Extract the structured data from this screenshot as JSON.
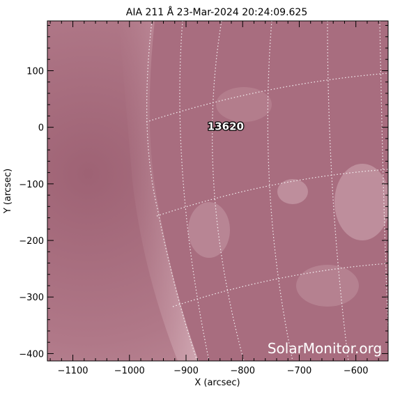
{
  "title": "AIA 211 Å 23-Mar-2024 20:24:09.625",
  "x_axis": {
    "label": "X (arcsec)",
    "range": [
      -1145,
      -543
    ],
    "ticks": [
      -1100,
      -1000,
      -900,
      -800,
      -700,
      -600
    ]
  },
  "y_axis": {
    "label": "Y (arcsec)",
    "range": [
      -413,
      188
    ],
    "ticks": [
      100,
      0,
      -100,
      -200,
      -300,
      -400
    ]
  },
  "region": {
    "number": "13620",
    "x": -830,
    "y": -5
  },
  "watermark": "SolarMonitor.org",
  "colors": {
    "disk": "#a86d7f",
    "corona": "#b8808e",
    "grid": "#ffffff",
    "frame": "#000000"
  }
}
